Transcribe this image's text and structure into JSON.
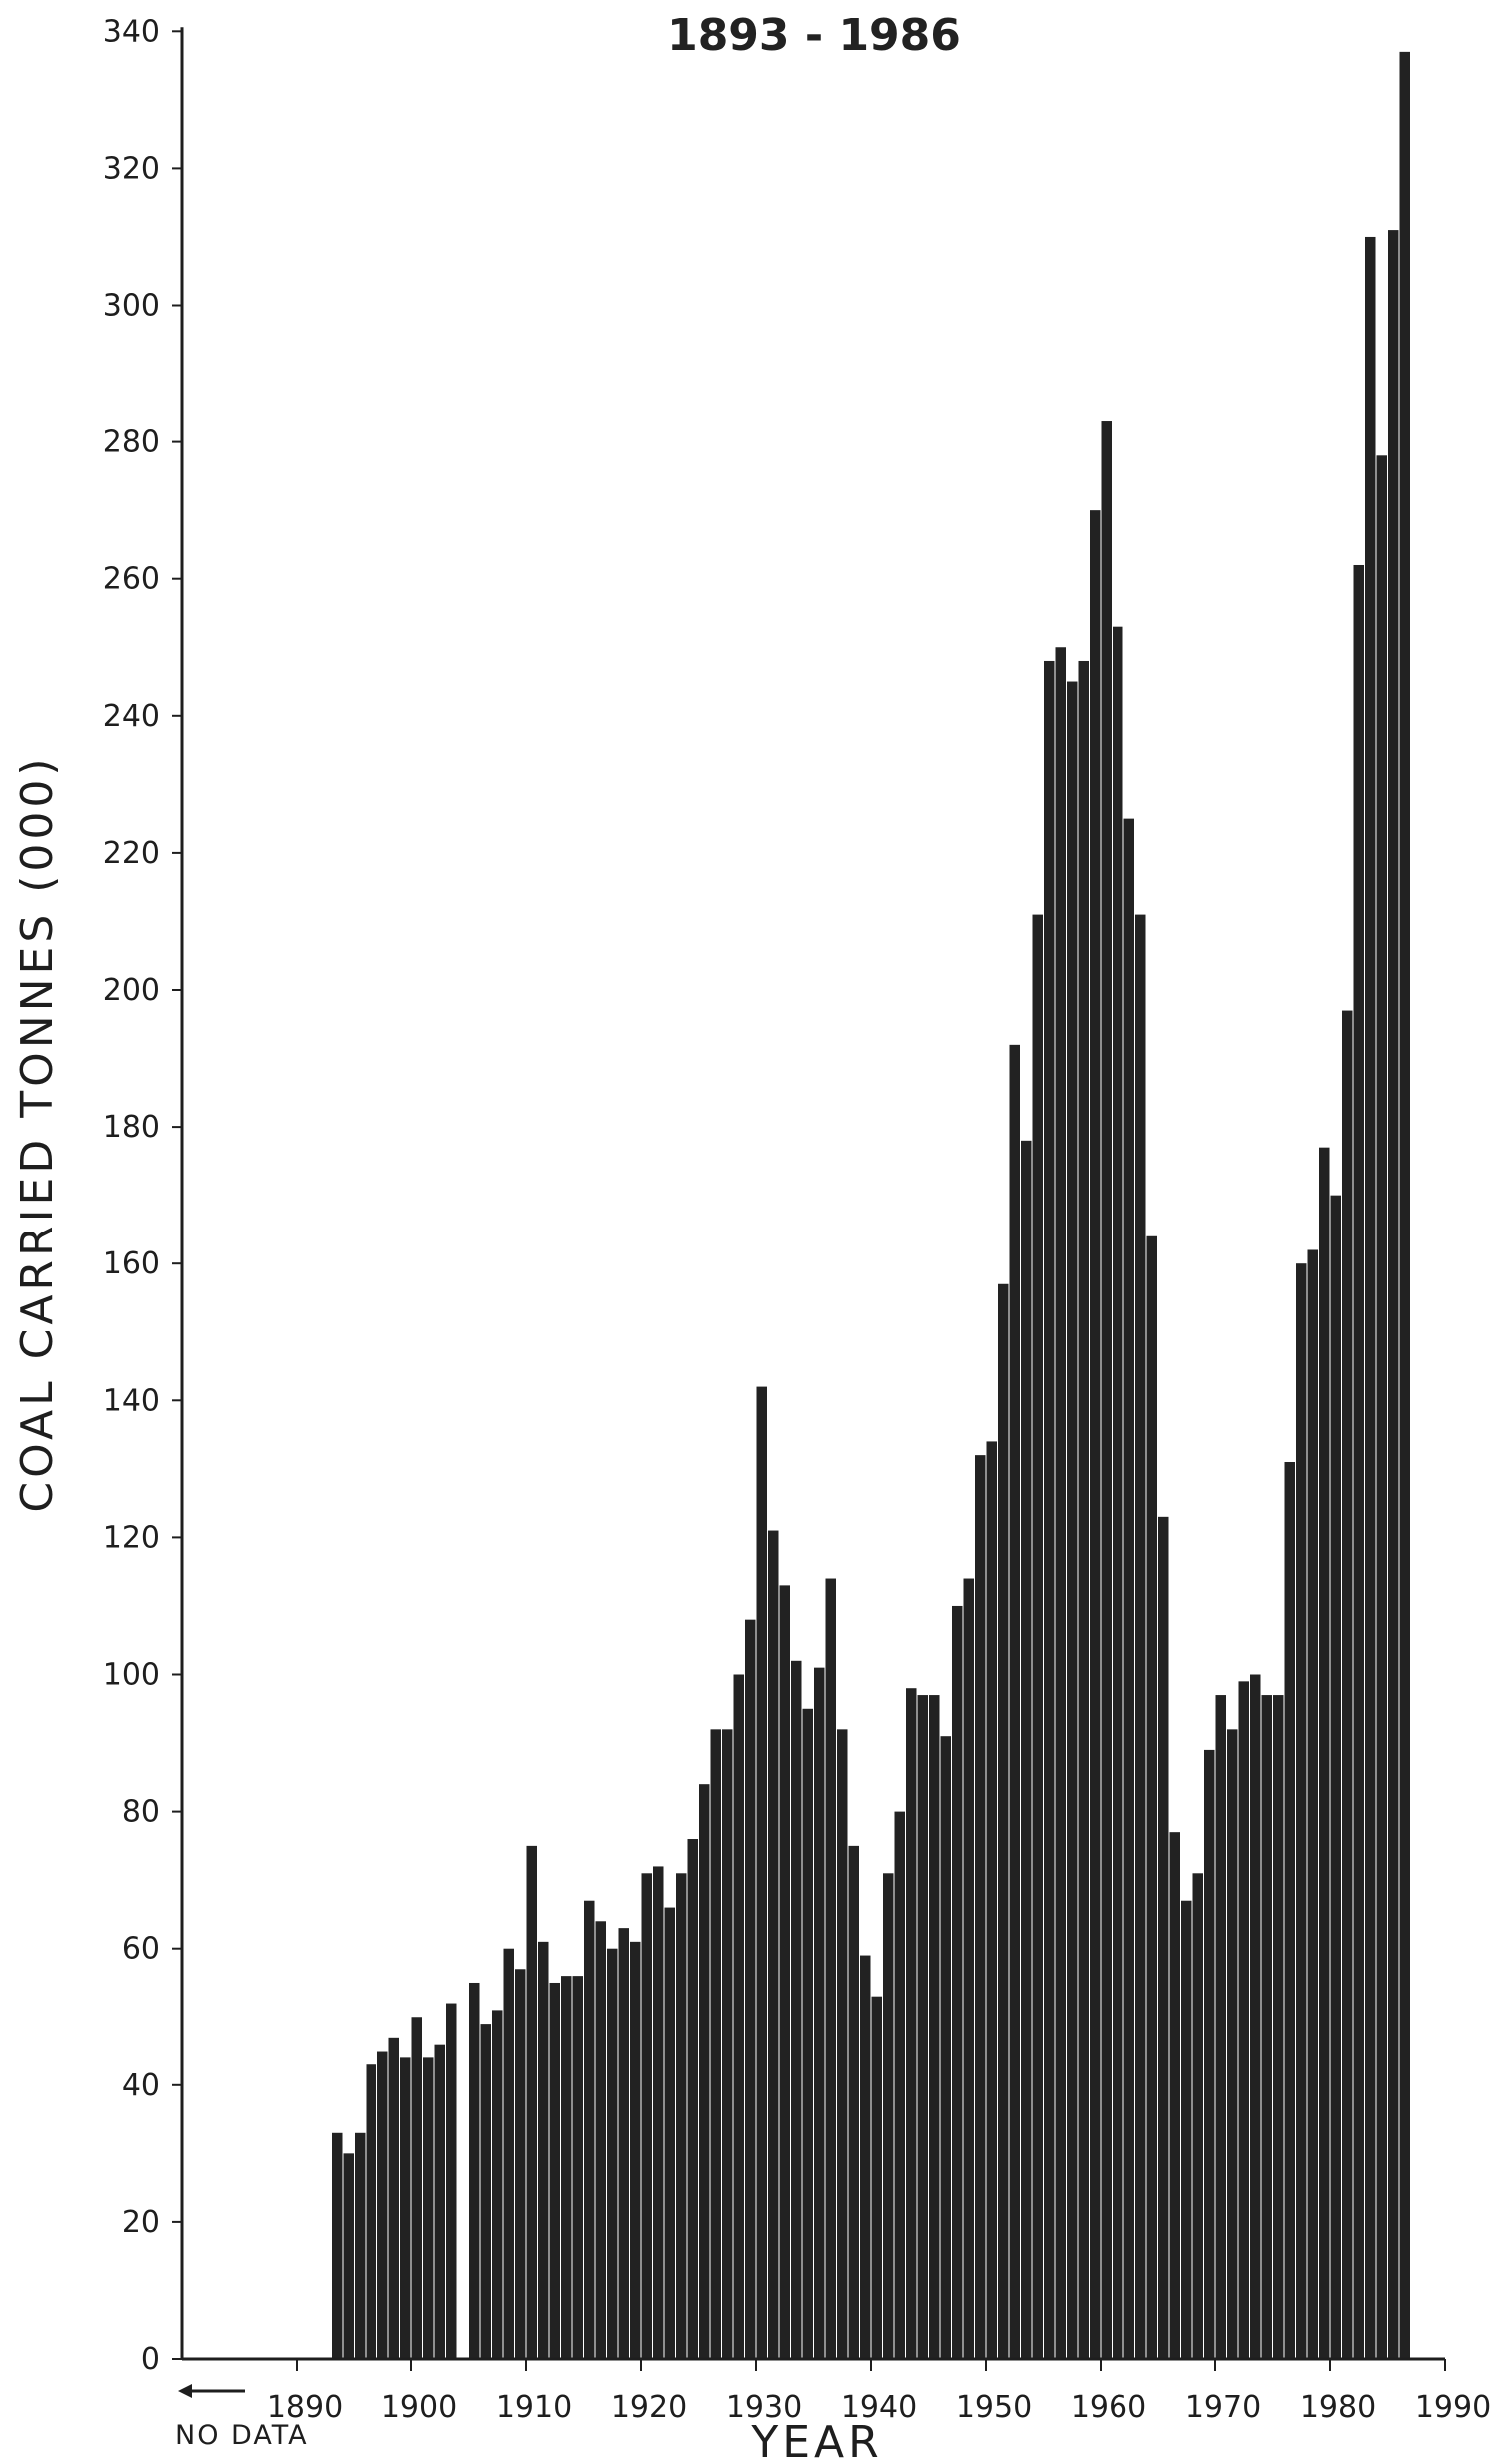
{
  "chart_data": {
    "type": "bar",
    "title": "1893 - 1986",
    "xlabel": "YEAR",
    "ylabel": "COAL CARRIED TONNES (000)",
    "xlim": [
      1880,
      1990
    ],
    "ylim": [
      0,
      340
    ],
    "x_ticks": [
      1890,
      1900,
      1910,
      1920,
      1930,
      1940,
      1950,
      1960,
      1970,
      1980,
      1990
    ],
    "y_ticks": [
      0,
      20,
      40,
      60,
      80,
      100,
      120,
      140,
      160,
      180,
      200,
      220,
      240,
      260,
      280,
      300,
      320,
      340
    ],
    "annotation": "NO DATA",
    "grid": false,
    "bar_color": "#222222",
    "x": [
      1893,
      1894,
      1895,
      1896,
      1897,
      1898,
      1899,
      1900,
      1901,
      1902,
      1903,
      1904,
      1905,
      1906,
      1907,
      1908,
      1909,
      1910,
      1911,
      1912,
      1913,
      1914,
      1915,
      1916,
      1917,
      1918,
      1919,
      1920,
      1921,
      1922,
      1923,
      1924,
      1925,
      1926,
      1927,
      1928,
      1929,
      1930,
      1931,
      1932,
      1933,
      1934,
      1935,
      1936,
      1937,
      1938,
      1939,
      1940,
      1941,
      1942,
      1943,
      1944,
      1945,
      1946,
      1947,
      1948,
      1949,
      1950,
      1951,
      1952,
      1953,
      1954,
      1955,
      1956,
      1957,
      1958,
      1959,
      1960,
      1961,
      1962,
      1963,
      1964,
      1965,
      1966,
      1967,
      1968,
      1969,
      1970,
      1971,
      1972,
      1973,
      1974,
      1975,
      1976,
      1977,
      1978,
      1979,
      1980,
      1981,
      1982,
      1983,
      1984,
      1985,
      1986
    ],
    "values": [
      33,
      30,
      33,
      43,
      45,
      47,
      44,
      50,
      44,
      46,
      52,
      0,
      55,
      49,
      51,
      60,
      57,
      75,
      61,
      55,
      56,
      56,
      67,
      64,
      60,
      63,
      61,
      71,
      72,
      66,
      71,
      76,
      84,
      92,
      92,
      100,
      108,
      142,
      121,
      113,
      102,
      95,
      101,
      114,
      92,
      75,
      59,
      53,
      71,
      80,
      98,
      97,
      97,
      91,
      110,
      114,
      132,
      134,
      157,
      192,
      178,
      211,
      248,
      250,
      245,
      248,
      270,
      283,
      253,
      225,
      211,
      164,
      123,
      77,
      67,
      71,
      89,
      97,
      92,
      99,
      100,
      97,
      97,
      131,
      160,
      162,
      177,
      170,
      197,
      262,
      310,
      278,
      311,
      337
    ]
  }
}
